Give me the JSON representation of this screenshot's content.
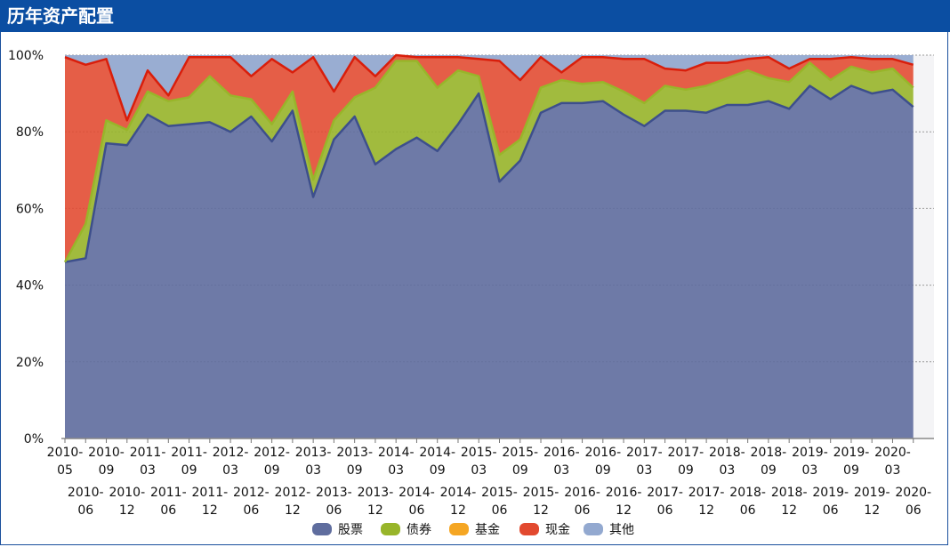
{
  "header": {
    "title": "历年资产配置"
  },
  "colors": {
    "header_bg": "#0b4ea2",
    "stock": "#5f6d9e",
    "stock_line": "#3d4f8c",
    "bond": "#98b52a",
    "fund": "#f5a623",
    "cash": "#e2492f",
    "cash_line": "#d91e0b",
    "other": "#93a9d0"
  },
  "chart_data": {
    "type": "area",
    "stacked": true,
    "ylim": [
      0,
      100
    ],
    "yticks": [
      "0%",
      "20%",
      "40%",
      "60%",
      "80%",
      "100%"
    ],
    "grid": true,
    "legend_position": "bottom",
    "categories": [
      "2010-05",
      "2010-06",
      "2010-09",
      "2010-12",
      "2011-03",
      "2011-06",
      "2011-09",
      "2011-12",
      "2012-03",
      "2012-06",
      "2012-09",
      "2012-12",
      "2013-03",
      "2013-06",
      "2013-09",
      "2013-12",
      "2014-03",
      "2014-06",
      "2014-09",
      "2014-12",
      "2015-03",
      "2015-06",
      "2015-09",
      "2015-12",
      "2016-03",
      "2016-06",
      "2016-09",
      "2016-12",
      "2017-03",
      "2017-06",
      "2017-09",
      "2017-12",
      "2018-03",
      "2018-06",
      "2018-09",
      "2018-12",
      "2019-03",
      "2019-06",
      "2019-09",
      "2019-12",
      "2020-03",
      "2020-06"
    ],
    "series": [
      {
        "name": "股票",
        "values": [
          46,
          47,
          77,
          76.5,
          84.5,
          81.5,
          82,
          82.5,
          80,
          84,
          77.5,
          85.5,
          63,
          78,
          84,
          71.5,
          75.5,
          78.5,
          75,
          82,
          90,
          67,
          72.5,
          85,
          87.5,
          87.5,
          88,
          84.5,
          81.5,
          85.5,
          85.5,
          85,
          87,
          87,
          88,
          86,
          92,
          88.5,
          92,
          90,
          91,
          86.5
        ]
      },
      {
        "name": "债券",
        "values": [
          0,
          9,
          6,
          4,
          6,
          6.5,
          7,
          12,
          9.5,
          4.5,
          4.5,
          5,
          4.5,
          5,
          5,
          20,
          23,
          20,
          16.5,
          14,
          4.5,
          7,
          5.5,
          6.5,
          6,
          5,
          5,
          6,
          6,
          6.5,
          5.5,
          7,
          7,
          9,
          6,
          7,
          6,
          5,
          5,
          5.5,
          5.5,
          5
        ]
      },
      {
        "name": "基金",
        "values": [
          0,
          0,
          0,
          0,
          0,
          0,
          0,
          0,
          0,
          0,
          0,
          0,
          0,
          0,
          0,
          0,
          0,
          0,
          0,
          0,
          0,
          0,
          0,
          0,
          0,
          0,
          0,
          0,
          0,
          0,
          0,
          0,
          0,
          0,
          0,
          0,
          0,
          0,
          0,
          0,
          0,
          0
        ]
      },
      {
        "name": "现金",
        "values": [
          53.5,
          41.5,
          16,
          2.5,
          5.5,
          1.5,
          10.5,
          5,
          10,
          6,
          17,
          5,
          32,
          7.5,
          10.5,
          3,
          1.5,
          1,
          8,
          3.5,
          4.5,
          24.5,
          15.5,
          8,
          2,
          7,
          6.5,
          8.5,
          11.5,
          4.5,
          5,
          6,
          4,
          3,
          5.5,
          3.5,
          1,
          5.5,
          2.5,
          3.5,
          2.5,
          6
        ]
      },
      {
        "name": "其他",
        "values": [
          0.5,
          2.5,
          1,
          17,
          4,
          10.5,
          0.5,
          0.5,
          0.5,
          5.5,
          1,
          4.5,
          0.5,
          9.5,
          0.5,
          5.5,
          0,
          0.5,
          0.5,
          0.5,
          1,
          1.5,
          6.5,
          0.5,
          4.5,
          0.5,
          0.5,
          1,
          1,
          3.5,
          4,
          2,
          2,
          1,
          0.5,
          3.5,
          1,
          1,
          0.5,
          1,
          1,
          2.5
        ]
      }
    ]
  }
}
